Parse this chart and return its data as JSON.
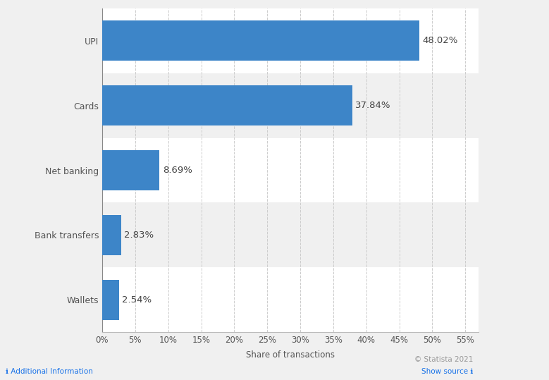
{
  "categories": [
    "Wallets",
    "Bank transfers",
    "Net banking",
    "Cards",
    "UPI"
  ],
  "values": [
    2.54,
    2.83,
    8.69,
    37.84,
    48.02
  ],
  "labels": [
    "2.54%",
    "2.83%",
    "8.69%",
    "37.84%",
    "48.02%"
  ],
  "bar_color": "#3d85c8",
  "xlabel": "Share of transactions",
  "xlim": [
    0,
    57
  ],
  "xticks": [
    0,
    5,
    10,
    15,
    20,
    25,
    30,
    35,
    40,
    45,
    50,
    55
  ],
  "xtick_labels": [
    "0%",
    "5%",
    "10%",
    "15%",
    "20%",
    "25%",
    "30%",
    "35%",
    "40%",
    "45%",
    "50%",
    "55%"
  ],
  "background_color": "#f0f0f0",
  "row_colors": [
    "#ffffff",
    "#f0f0f0"
  ],
  "grid_color": "#cccccc",
  "label_fontsize": 9.5,
  "xlabel_fontsize": 8.5,
  "tick_fontsize": 8.5,
  "ytick_fontsize": 9,
  "bar_height": 0.62,
  "footer_text": "© Statista 2021",
  "footer_color": "#999999",
  "sidebar_color": "#ffffff",
  "additional_info_text": "Additional Information",
  "show_source_text": "Show source",
  "bottom_link_color": "#1a73e8"
}
